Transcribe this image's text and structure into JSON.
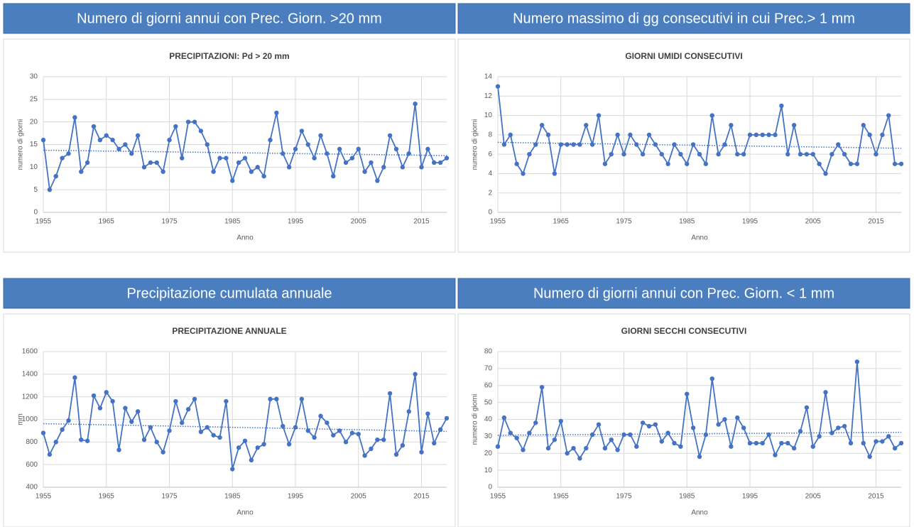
{
  "chart_data": [
    {
      "type": "line",
      "header": "Numero di giorni annui con Prec. Giorn. >20 mm",
      "title": "PRECIPITAZIONI: Pd > 20 mm",
      "xlabel": "Anno",
      "ylabel": "numero di giorni",
      "x": [
        1955,
        1956,
        1957,
        1958,
        1959,
        1960,
        1961,
        1962,
        1963,
        1964,
        1965,
        1966,
        1967,
        1968,
        1969,
        1970,
        1971,
        1972,
        1973,
        1974,
        1975,
        1976,
        1977,
        1978,
        1979,
        1980,
        1981,
        1982,
        1983,
        1984,
        1985,
        1986,
        1987,
        1988,
        1989,
        1990,
        1991,
        1992,
        1993,
        1994,
        1995,
        1996,
        1997,
        1998,
        1999,
        2000,
        2001,
        2002,
        2003,
        2004,
        2005,
        2006,
        2007,
        2008,
        2009,
        2010,
        2011,
        2012,
        2013,
        2014,
        2015,
        2016,
        2017,
        2018,
        2019
      ],
      "values": [
        16,
        5,
        8,
        12,
        13,
        21,
        9,
        11,
        19,
        16,
        17,
        16,
        14,
        15,
        13,
        17,
        10,
        11,
        11,
        9,
        16,
        19,
        12,
        20,
        20,
        18,
        15,
        9,
        12,
        12,
        7,
        11,
        12,
        9,
        10,
        8,
        16,
        22,
        13,
        10,
        14,
        18,
        15,
        12,
        17,
        13,
        8,
        14,
        11,
        12,
        14,
        9,
        11,
        7,
        10,
        17,
        14,
        10,
        13,
        24,
        10,
        14,
        11,
        11,
        12
      ],
      "color": "#4472c4",
      "xlim": [
        1955,
        2019
      ],
      "xticks": [
        1955,
        1965,
        1975,
        1985,
        1995,
        2005,
        2015
      ],
      "ylim": [
        0,
        30
      ],
      "yticks": [
        0,
        5,
        10,
        15,
        20,
        25,
        30
      ],
      "grid": true,
      "trendline": true
    },
    {
      "type": "line",
      "header": "Numero massimo di gg consecutivi in cui Prec.> 1 mm",
      "title": "GIORNI UMIDI CONSECUTIVI",
      "xlabel": "Anno",
      "ylabel": "numero di giorni",
      "x": [
        1955,
        1956,
        1957,
        1958,
        1959,
        1960,
        1961,
        1962,
        1963,
        1964,
        1965,
        1966,
        1967,
        1968,
        1969,
        1970,
        1971,
        1972,
        1973,
        1974,
        1975,
        1976,
        1977,
        1978,
        1979,
        1980,
        1981,
        1982,
        1983,
        1984,
        1985,
        1986,
        1987,
        1988,
        1989,
        1990,
        1991,
        1992,
        1993,
        1994,
        1995,
        1996,
        1997,
        1998,
        1999,
        2000,
        2001,
        2002,
        2003,
        2004,
        2005,
        2006,
        2007,
        2008,
        2009,
        2010,
        2011,
        2012,
        2013,
        2014,
        2015,
        2016,
        2017,
        2018,
        2019
      ],
      "values": [
        13,
        7,
        8,
        5,
        4,
        6,
        7,
        9,
        8,
        4,
        7,
        7,
        7,
        7,
        9,
        7,
        10,
        5,
        6,
        8,
        6,
        8,
        7,
        6,
        8,
        7,
        6,
        5,
        7,
        6,
        5,
        7,
        6,
        5,
        10,
        6,
        7,
        9,
        6,
        6,
        8,
        8,
        8,
        8,
        8,
        11,
        6,
        9,
        6,
        6,
        6,
        5,
        4,
        6,
        7,
        6,
        5,
        5,
        9,
        8,
        6,
        8,
        10,
        5,
        5
      ],
      "color": "#4472c4",
      "xlim": [
        1955,
        2019
      ],
      "xticks": [
        1955,
        1965,
        1975,
        1985,
        1995,
        2005,
        2015
      ],
      "ylim": [
        0,
        14
      ],
      "yticks": [
        0,
        2,
        4,
        6,
        8,
        10,
        12,
        14
      ],
      "grid": true,
      "trendline": true
    },
    {
      "type": "line",
      "header": "Precipitazione cumulata annuale",
      "title": "PRECIPITAZIONE ANNUALE",
      "xlabel": "Anno",
      "ylabel": "mm",
      "x": [
        1955,
        1956,
        1957,
        1958,
        1959,
        1960,
        1961,
        1962,
        1963,
        1964,
        1965,
        1966,
        1967,
        1968,
        1969,
        1970,
        1971,
        1972,
        1973,
        1974,
        1975,
        1976,
        1977,
        1978,
        1979,
        1980,
        1981,
        1982,
        1983,
        1984,
        1985,
        1986,
        1987,
        1988,
        1989,
        1990,
        1991,
        1992,
        1993,
        1994,
        1995,
        1996,
        1997,
        1998,
        1999,
        2000,
        2001,
        2002,
        2003,
        2004,
        2005,
        2006,
        2007,
        2008,
        2009,
        2010,
        2011,
        2012,
        2013,
        2014,
        2015,
        2016,
        2017,
        2018,
        2019
      ],
      "values": [
        880,
        690,
        800,
        910,
        990,
        1370,
        820,
        810,
        1210,
        1100,
        1240,
        1160,
        730,
        1100,
        980,
        1070,
        820,
        930,
        800,
        710,
        900,
        1160,
        970,
        1090,
        1180,
        890,
        930,
        860,
        840,
        1160,
        560,
        750,
        810,
        640,
        750,
        780,
        1180,
        1180,
        940,
        780,
        930,
        1180,
        900,
        840,
        1030,
        970,
        860,
        900,
        800,
        880,
        870,
        680,
        740,
        820,
        820,
        1230,
        690,
        770,
        1070,
        1400,
        710,
        1050,
        790,
        910,
        1010
      ],
      "color": "#4472c4",
      "xlim": [
        1955,
        2019
      ],
      "xticks": [
        1955,
        1965,
        1975,
        1985,
        1995,
        2005,
        2015
      ],
      "ylim": [
        400,
        1600
      ],
      "yticks": [
        400,
        600,
        800,
        1000,
        1200,
        1400,
        1600
      ],
      "grid": true,
      "trendline": true
    },
    {
      "type": "line",
      "header": "Numero di giorni annui con Prec. Giorn. < 1 mm",
      "title": "GIORNI SECCHI CONSECUTIVI",
      "xlabel": "Anno",
      "ylabel": "numero di giorni",
      "x": [
        1955,
        1956,
        1957,
        1958,
        1959,
        1960,
        1961,
        1962,
        1963,
        1964,
        1965,
        1966,
        1967,
        1968,
        1969,
        1970,
        1971,
        1972,
        1973,
        1974,
        1975,
        1976,
        1977,
        1978,
        1979,
        1980,
        1981,
        1982,
        1983,
        1984,
        1985,
        1986,
        1987,
        1988,
        1989,
        1990,
        1991,
        1992,
        1993,
        1994,
        1995,
        1996,
        1997,
        1998,
        1999,
        2000,
        2001,
        2002,
        2003,
        2004,
        2005,
        2006,
        2007,
        2008,
        2009,
        2010,
        2011,
        2012,
        2013,
        2014,
        2015,
        2016,
        2017,
        2018,
        2019
      ],
      "values": [
        24,
        41,
        32,
        29,
        22,
        32,
        38,
        59,
        23,
        28,
        39,
        20,
        23,
        17,
        23,
        31,
        37,
        23,
        28,
        22,
        31,
        31,
        24,
        38,
        36,
        37,
        27,
        32,
        26,
        24,
        55,
        35,
        18,
        31,
        64,
        37,
        40,
        24,
        41,
        35,
        26,
        26,
        26,
        31,
        19,
        26,
        26,
        23,
        33,
        47,
        24,
        30,
        56,
        32,
        35,
        36,
        26,
        74,
        26,
        18,
        27,
        27,
        30,
        23,
        26
      ],
      "color": "#4472c4",
      "xlim": [
        1955,
        2019
      ],
      "xticks": [
        1955,
        1965,
        1975,
        1985,
        1995,
        2005,
        2015
      ],
      "ylim": [
        0,
        80
      ],
      "yticks": [
        0,
        10,
        20,
        30,
        40,
        50,
        60,
        70,
        80
      ],
      "grid": true,
      "trendline": true
    }
  ]
}
